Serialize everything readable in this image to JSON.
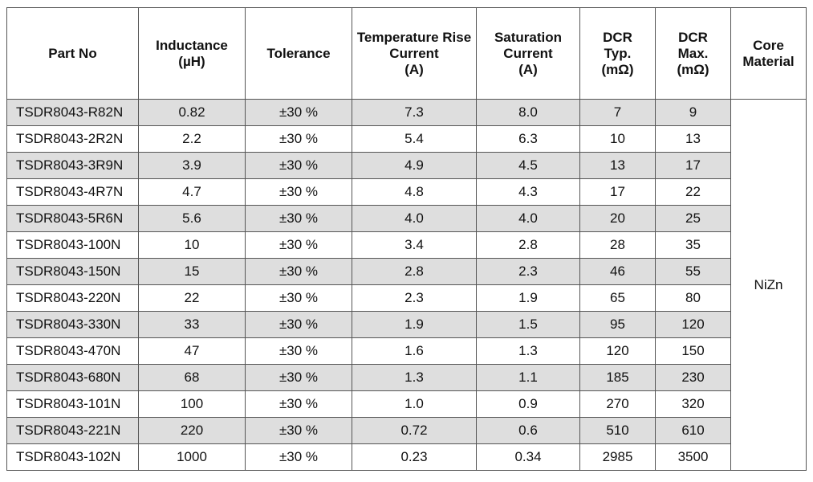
{
  "headers": [
    [
      "Part No"
    ],
    [
      "Inductance",
      "(µH)"
    ],
    [
      "Tolerance"
    ],
    [
      "Temperature Rise",
      "Current",
      "(A)"
    ],
    [
      "Saturation",
      "Current",
      "(A)"
    ],
    [
      "DCR",
      "Typ.",
      "(mΩ)"
    ],
    [
      "DCR",
      "Max.",
      "(mΩ)"
    ],
    [
      "Core",
      "Material"
    ]
  ],
  "rows": [
    [
      "TSDR8043-R82N",
      "0.82",
      "±30 %",
      "7.3",
      "8.0",
      "7",
      "9"
    ],
    [
      "TSDR8043-2R2N",
      "2.2",
      "±30 %",
      "5.4",
      "6.3",
      "10",
      "13"
    ],
    [
      "TSDR8043-3R9N",
      "3.9",
      "±30 %",
      "4.9",
      "4.5",
      "13",
      "17"
    ],
    [
      "TSDR8043-4R7N",
      "4.7",
      "±30 %",
      "4.8",
      "4.3",
      "17",
      "22"
    ],
    [
      "TSDR8043-5R6N",
      "5.6",
      "±30 %",
      "4.0",
      "4.0",
      "20",
      "25"
    ],
    [
      "TSDR8043-100N",
      "10",
      "±30 %",
      "3.4",
      "2.8",
      "28",
      "35"
    ],
    [
      "TSDR8043-150N",
      "15",
      "±30 %",
      "2.8",
      "2.3",
      "46",
      "55"
    ],
    [
      "TSDR8043-220N",
      "22",
      "±30 %",
      "2.3",
      "1.9",
      "65",
      "80"
    ],
    [
      "TSDR8043-330N",
      "33",
      "±30 %",
      "1.9",
      "1.5",
      "95",
      "120"
    ],
    [
      "TSDR8043-470N",
      "47",
      "±30 %",
      "1.6",
      "1.3",
      "120",
      "150"
    ],
    [
      "TSDR8043-680N",
      "68",
      "±30 %",
      "1.3",
      "1.1",
      "185",
      "230"
    ],
    [
      "TSDR8043-101N",
      "100",
      "±30 %",
      "1.0",
      "0.9",
      "270",
      "320"
    ],
    [
      "TSDR8043-221N",
      "220",
      "±30 %",
      "0.72",
      "0.6",
      "510",
      "610"
    ],
    [
      "TSDR8043-102N",
      "1000",
      "±30 %",
      "0.23",
      "0.34",
      "2985",
      "3500"
    ]
  ],
  "core_material": "NiZn",
  "colors": {
    "shaded_row": "#dedede",
    "border": "#555555"
  }
}
